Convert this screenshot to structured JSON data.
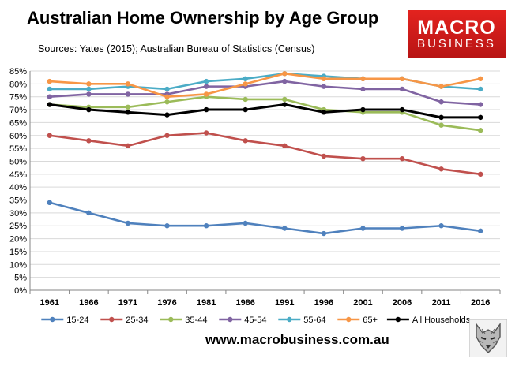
{
  "header": {
    "title": "Australian Home Ownership by Age Group",
    "sources": "Sources: Yates (2015); Australian Bureau of Statistics (Census)"
  },
  "logo": {
    "line1": "MACRO",
    "line2": "BUSINESS"
  },
  "footer": {
    "url": "www.macrobusiness.com.au"
  },
  "chart_data": {
    "type": "line",
    "title": "Australian Home Ownership by Age Group",
    "xlabel": "",
    "ylabel": "",
    "ylim": [
      0,
      85
    ],
    "grid": true,
    "legend_position": "bottom",
    "categories": [
      "1961",
      "1966",
      "1971",
      "1976",
      "1981",
      "1986",
      "1991",
      "1996",
      "2001",
      "2006",
      "2011",
      "2016"
    ],
    "y_ticks": [
      "0%",
      "5%",
      "10%",
      "15%",
      "20%",
      "25%",
      "30%",
      "35%",
      "40%",
      "45%",
      "50%",
      "55%",
      "60%",
      "65%",
      "70%",
      "75%",
      "80%",
      "85%"
    ],
    "series": [
      {
        "name": "15-24",
        "color": "#4f81bd",
        "values": [
          34,
          30,
          26,
          25,
          25,
          26,
          24,
          22,
          24,
          24,
          25,
          23
        ]
      },
      {
        "name": "25-34",
        "color": "#c0504d",
        "values": [
          60,
          58,
          56,
          60,
          61,
          58,
          56,
          52,
          51,
          51,
          47,
          45
        ]
      },
      {
        "name": "35-44",
        "color": "#9bbb59",
        "values": [
          72,
          71,
          71,
          73,
          75,
          74,
          74,
          70,
          69,
          69,
          64,
          62
        ]
      },
      {
        "name": "45-54",
        "color": "#8064a2",
        "values": [
          75,
          76,
          76,
          76,
          79,
          79,
          81,
          79,
          78,
          78,
          73,
          72
        ]
      },
      {
        "name": "55-64",
        "color": "#4bacc6",
        "values": [
          78,
          78,
          79,
          78,
          81,
          82,
          84,
          83,
          82,
          82,
          79,
          78
        ]
      },
      {
        "name": "65+",
        "color": "#f79646",
        "values": [
          81,
          80,
          80,
          75,
          76,
          80,
          84,
          82,
          82,
          82,
          79,
          82
        ]
      },
      {
        "name": "All Households",
        "color": "#000000",
        "values": [
          72,
          70,
          69,
          68,
          70,
          70,
          72,
          69,
          70,
          70,
          67,
          67
        ]
      }
    ]
  }
}
